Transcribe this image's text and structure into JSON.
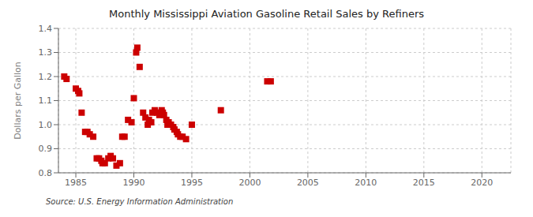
{
  "chart_data": {
    "type": "scatter",
    "title": "Monthly Mississippi Aviation Gasoline Retail Sales by Refiners",
    "ylabel": "Dollars per Gallon",
    "annotations": [
      "Source: U.S. Energy Information Administration"
    ],
    "x": [
      1984.0,
      1984.2,
      1985.0,
      1985.2,
      1985.3,
      1985.5,
      1985.8,
      1986.0,
      1986.2,
      1986.5,
      1986.8,
      1987.0,
      1987.2,
      1987.3,
      1987.5,
      1987.8,
      1988.0,
      1988.2,
      1988.5,
      1988.8,
      1989.0,
      1989.2,
      1989.5,
      1989.8,
      1990.0,
      1990.2,
      1990.3,
      1990.5,
      1990.8,
      1991.0,
      1991.2,
      1991.3,
      1991.5,
      1991.6,
      1991.8,
      1992.0,
      1992.2,
      1992.3,
      1992.4,
      1992.5,
      1992.6,
      1992.8,
      1992.9,
      1993.0,
      1993.2,
      1993.4,
      1993.5,
      1993.7,
      1993.8,
      1994.0,
      1994.2,
      1994.5,
      1995.0,
      1997.5,
      2001.5,
      2001.8
    ],
    "values": [
      1.2,
      1.19,
      1.15,
      1.14,
      1.13,
      1.05,
      0.97,
      0.97,
      0.96,
      0.95,
      0.86,
      0.86,
      0.85,
      0.84,
      0.84,
      0.86,
      0.87,
      0.86,
      0.83,
      0.84,
      0.95,
      0.95,
      1.02,
      1.01,
      1.11,
      1.3,
      1.32,
      1.24,
      1.05,
      1.03,
      1.0,
      1.02,
      1.01,
      1.05,
      1.06,
      1.05,
      1.04,
      1.05,
      1.06,
      1.05,
      1.04,
      1.02,
      1.0,
      1.01,
      1.0,
      0.99,
      0.98,
      0.97,
      0.96,
      0.95,
      0.95,
      0.94,
      1.0,
      1.06,
      1.18,
      1.18
    ],
    "color": "#cc0000",
    "marker": "square",
    "xlim": [
      1983.5,
      2022.5
    ],
    "ylim": [
      0.8,
      1.4
    ],
    "xticks": [
      1985,
      1990,
      1995,
      2000,
      2005,
      2010,
      2015,
      2020
    ],
    "yticks": [
      0.8,
      0.9,
      {
        "value": 1.0,
        "label": "1.0"
      },
      1.1,
      1.2,
      1.3,
      1.4
    ],
    "grid": true
  }
}
